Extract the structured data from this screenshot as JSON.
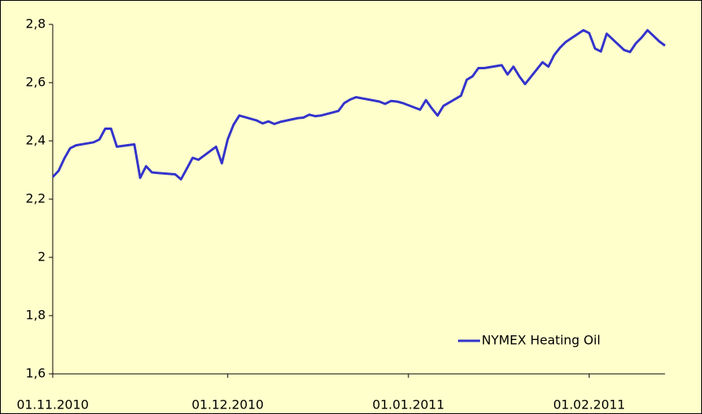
{
  "chart_data": {
    "type": "line",
    "x": [
      "2010-11-01",
      "2010-11-02",
      "2010-11-03",
      "2010-11-04",
      "2010-11-05",
      "2010-11-08",
      "2010-11-09",
      "2010-11-10",
      "2010-11-11",
      "2010-11-12",
      "2010-11-15",
      "2010-11-16",
      "2010-11-17",
      "2010-11-18",
      "2010-11-19",
      "2010-11-22",
      "2010-11-23",
      "2010-11-25",
      "2010-11-26",
      "2010-11-29",
      "2010-11-30",
      "2010-12-01",
      "2010-12-02",
      "2010-12-03",
      "2010-12-06",
      "2010-12-07",
      "2010-12-08",
      "2010-12-09",
      "2010-12-10",
      "2010-12-13",
      "2010-12-14",
      "2010-12-15",
      "2010-12-16",
      "2010-12-17",
      "2010-12-20",
      "2010-12-21",
      "2010-12-22",
      "2010-12-23",
      "2010-12-27",
      "2010-12-28",
      "2010-12-29",
      "2010-12-30",
      "2010-12-31",
      "2011-01-03",
      "2011-01-04",
      "2011-01-05",
      "2011-01-06",
      "2011-01-07",
      "2011-01-10",
      "2011-01-11",
      "2011-01-12",
      "2011-01-13",
      "2011-01-14",
      "2011-01-17",
      "2011-01-18",
      "2011-01-19",
      "2011-01-20",
      "2011-01-21",
      "2011-01-24",
      "2011-01-25",
      "2011-01-26",
      "2011-01-27",
      "2011-01-28",
      "2011-01-31",
      "2011-02-01",
      "2011-02-02",
      "2011-02-03",
      "2011-02-04",
      "2011-02-07",
      "2011-02-08",
      "2011-02-09",
      "2011-02-10",
      "2011-02-11",
      "2011-02-13",
      "2011-02-14"
    ],
    "series": [
      {
        "name": "NYMEX Heating Oil",
        "color": "#3333cc",
        "values": [
          2.276,
          2.297,
          2.34,
          2.375,
          2.385,
          2.395,
          2.405,
          2.442,
          2.442,
          2.38,
          2.388,
          2.273,
          2.313,
          2.292,
          2.29,
          2.285,
          2.268,
          2.342,
          2.335,
          2.38,
          2.323,
          2.405,
          2.455,
          2.487,
          2.47,
          2.46,
          2.467,
          2.458,
          2.465,
          2.478,
          2.48,
          2.49,
          2.485,
          2.487,
          2.503,
          2.53,
          2.542,
          2.55,
          2.535,
          2.527,
          2.537,
          2.535,
          2.53,
          2.507,
          2.54,
          2.512,
          2.487,
          2.52,
          2.555,
          2.61,
          2.622,
          2.65,
          2.65,
          2.66,
          2.628,
          2.655,
          2.622,
          2.595,
          2.67,
          2.655,
          2.695,
          2.72,
          2.74,
          2.78,
          2.77,
          2.717,
          2.707,
          2.768,
          2.712,
          2.705,
          2.735,
          2.755,
          2.78,
          2.742,
          2.727
        ]
      }
    ],
    "xlim": [
      "2010-11-01",
      "2011-02-14"
    ],
    "xticks": [
      {
        "value": "2010-11-01",
        "label": "01.11.2010"
      },
      {
        "value": "2010-12-01",
        "label": "01.12.2010"
      },
      {
        "value": "2011-01-01",
        "label": "01.01.2011"
      },
      {
        "value": "2011-02-01",
        "label": "01.02.2011"
      }
    ],
    "ylim": [
      1.6,
      2.8
    ],
    "yticks": [
      {
        "value": 1.6,
        "label": "1,6"
      },
      {
        "value": 1.8,
        "label": "1,8"
      },
      2,
      {
        "value": 2.2,
        "label": "2,2"
      },
      {
        "value": 2.4,
        "label": "2,4"
      },
      {
        "value": 2.6,
        "label": "2,6"
      },
      {
        "value": 2.8,
        "label": "2,8"
      }
    ],
    "grid": false,
    "legend": "lower right"
  }
}
